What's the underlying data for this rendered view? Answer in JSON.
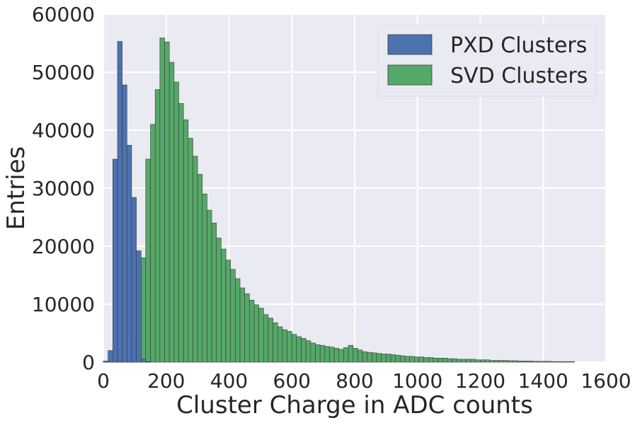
{
  "chart_data": {
    "type": "bar",
    "style": "histogram",
    "xlabel": "Cluster Charge in ADC counts",
    "ylabel": "Entries",
    "xlim": [
      0,
      1600
    ],
    "ylim": [
      0,
      60000
    ],
    "xticks": [
      0,
      200,
      400,
      600,
      800,
      1000,
      1200,
      1400,
      1600
    ],
    "yticks": [
      0,
      10000,
      20000,
      30000,
      40000,
      50000,
      60000
    ],
    "grid": true,
    "legend_position": "top-right",
    "bin_width": 15,
    "series": [
      {
        "name": "PXD Clusters",
        "color": "#4c72b0",
        "bin_start": 0,
        "values": [
          200,
          2000,
          35000,
          55300,
          47800,
          37400,
          28400,
          19200,
          500,
          100
        ]
      },
      {
        "name": "SVD Clusters",
        "color": "#55a868",
        "bin_start": 0,
        "values": [
          100,
          100,
          200,
          300,
          600,
          1500,
          4500,
          11000,
          18000,
          35000,
          41000,
          47000,
          55900,
          55200,
          51700,
          48300,
          44600,
          41800,
          38600,
          35500,
          32400,
          29000,
          26200,
          24000,
          21400,
          19500,
          17600,
          16000,
          14400,
          12800,
          11800,
          10700,
          9900,
          9300,
          8200,
          7600,
          6800,
          6100,
          5600,
          5300,
          4800,
          4400,
          4100,
          3700,
          3300,
          3000,
          2900,
          2700,
          2600,
          2400,
          2200,
          2500,
          2900,
          2400,
          2100,
          1800,
          1700,
          1600,
          1500,
          1400,
          1400,
          1300,
          1200,
          1100,
          1000,
          1000,
          900,
          900,
          800,
          800,
          700,
          700,
          700,
          600,
          600,
          500,
          500,
          500,
          500,
          400,
          400,
          400,
          300,
          300,
          300,
          300,
          250,
          250,
          200,
          200,
          200,
          150,
          150,
          150,
          150,
          100,
          100,
          100,
          100,
          100
        ]
      }
    ]
  }
}
